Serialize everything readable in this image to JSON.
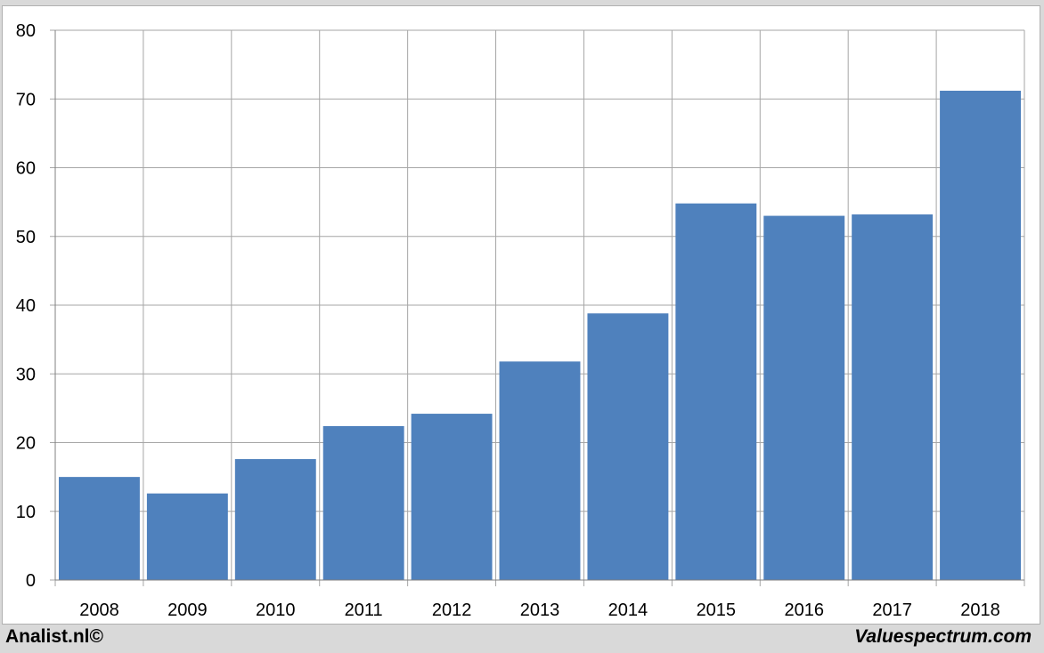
{
  "chart_data": {
    "type": "bar",
    "categories": [
      "2008",
      "2009",
      "2010",
      "2011",
      "2012",
      "2013",
      "2014",
      "2015",
      "2016",
      "2017",
      "2018"
    ],
    "values": [
      15.0,
      12.6,
      17.6,
      22.4,
      24.2,
      31.8,
      38.8,
      54.8,
      53.0,
      53.2,
      71.2
    ],
    "yticks": [
      0,
      10,
      20,
      30,
      40,
      50,
      60,
      70,
      80
    ],
    "ylim": [
      0,
      80
    ],
    "title": "",
    "xlabel": "",
    "ylabel": "",
    "grid": true,
    "bar_color": "#4f81bd",
    "grid_color": "#a6a6a6"
  },
  "footer": {
    "left_text": "Analist.nl©",
    "right_text": "Valuespectrum.com"
  }
}
